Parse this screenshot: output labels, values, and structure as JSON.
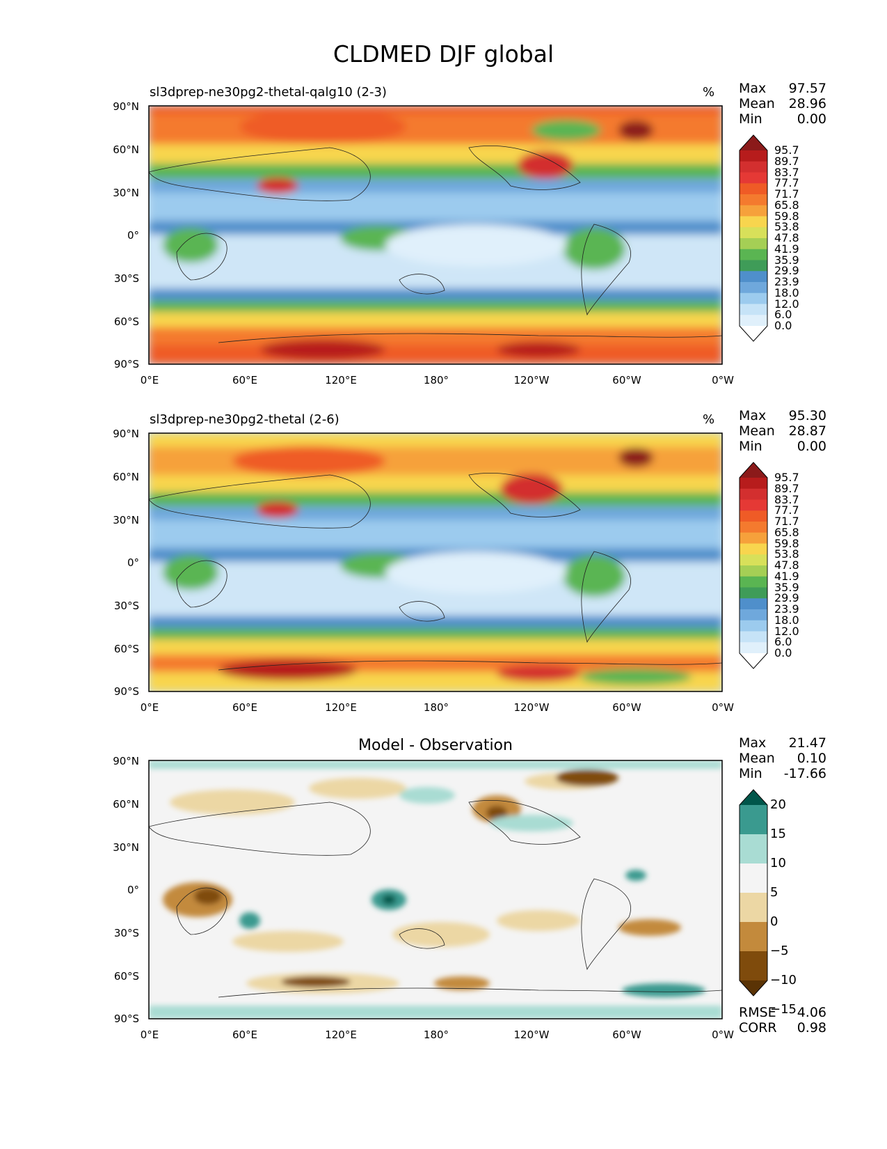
{
  "figure": {
    "title": "CLDMED DJF global"
  },
  "panels": [
    {
      "id": "test",
      "left_title": "sl3dprep-ne30pg2-thetal-qalg10 (2-3)",
      "units": "%",
      "stats": {
        "max_label": "Max",
        "max": "97.57",
        "mean_label": "Mean",
        "mean": "28.96",
        "min_label": "Min",
        "min": "0.00"
      },
      "colorbar": {
        "levels": [
          "95.7",
          "89.7",
          "83.7",
          "77.7",
          "71.7",
          "65.8",
          "59.8",
          "53.8",
          "47.8",
          "41.9",
          "35.9",
          "29.9",
          "23.9",
          "18.0",
          "12.0",
          "6.0",
          "0.0"
        ],
        "colors": [
          "#8b1a1a",
          "#b71c1c",
          "#d32f2f",
          "#e53935",
          "#ef5b26",
          "#f47a2e",
          "#f6a13b",
          "#f8d54e",
          "#d8e05a",
          "#a5cf55",
          "#5ab552",
          "#3f9c58",
          "#4f8fcb",
          "#6fa8dc",
          "#9ccbee",
          "#c6e3f7",
          "#e0f0fb",
          "#ffffff"
        ]
      }
    },
    {
      "id": "reference",
      "left_title": "sl3dprep-ne30pg2-thetal (2-6)",
      "units": "%",
      "stats": {
        "max_label": "Max",
        "max": "95.30",
        "mean_label": "Mean",
        "mean": "28.87",
        "min_label": "Min",
        "min": "0.00"
      },
      "colorbar": {
        "levels": [
          "95.7",
          "89.7",
          "83.7",
          "77.7",
          "71.7",
          "65.8",
          "59.8",
          "53.8",
          "47.8",
          "41.9",
          "35.9",
          "29.9",
          "23.9",
          "18.0",
          "12.0",
          "6.0",
          "0.0"
        ],
        "colors": [
          "#8b1a1a",
          "#b71c1c",
          "#d32f2f",
          "#e53935",
          "#ef5b26",
          "#f47a2e",
          "#f6a13b",
          "#f8d54e",
          "#d8e05a",
          "#a5cf55",
          "#5ab552",
          "#3f9c58",
          "#4f8fcb",
          "#6fa8dc",
          "#9ccbee",
          "#c6e3f7",
          "#e0f0fb",
          "#ffffff"
        ]
      }
    },
    {
      "id": "difference",
      "center_title": "Model - Observation",
      "stats": {
        "max_label": "Max",
        "max": "21.47",
        "mean_label": "Mean",
        "mean": "0.10",
        "min_label": "Min",
        "min": "-17.66"
      },
      "extra_stats": {
        "rmse_label": "RMSE",
        "rmse": "4.06",
        "corr_label": "CORR",
        "corr": "0.98"
      },
      "colorbar": {
        "levels": [
          "20",
          "15",
          "10",
          "5",
          "0",
          "−5",
          "−10",
          "−15"
        ],
        "colors": [
          "#01564a",
          "#3a9a8f",
          "#a9dcd3",
          "#f4f4f4",
          "#ecd7a4",
          "#c38a3c",
          "#7f4b0c",
          "#5a3305"
        ]
      }
    }
  ],
  "axes": {
    "yticks": [
      "90°N",
      "60°N",
      "30°N",
      "0°",
      "30°S",
      "60°S",
      "90°S"
    ],
    "xticks": [
      "0°E",
      "60°E",
      "120°E",
      "180°",
      "120°W",
      "60°W",
      "0°W"
    ]
  }
}
